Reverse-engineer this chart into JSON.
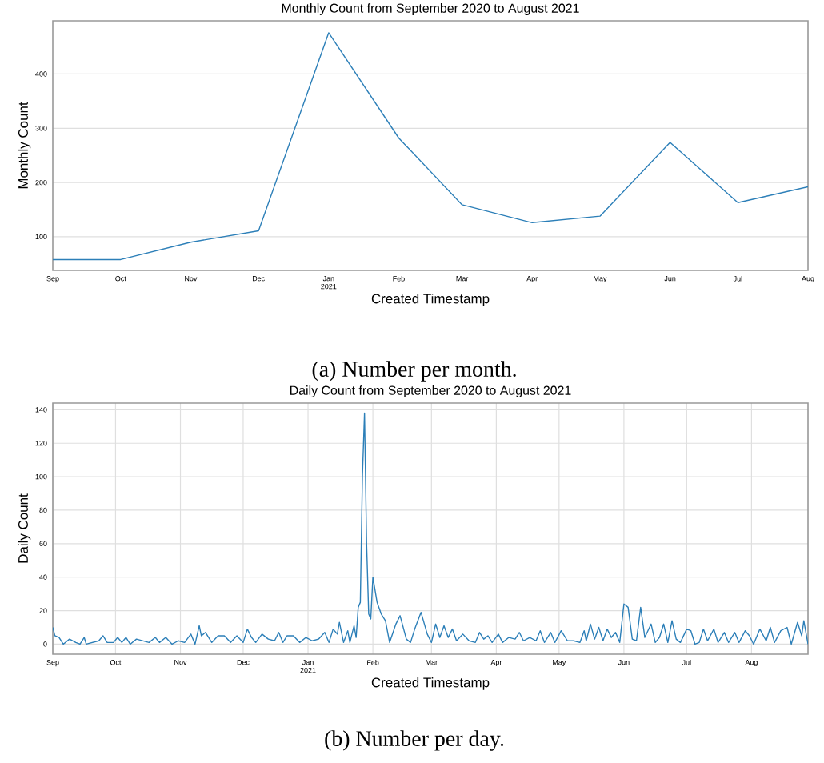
{
  "chart_data": [
    {
      "type": "line",
      "title": "Monthly Count from September 2020 to August 2021",
      "xlabel": "Created Timestamp",
      "ylabel": "Monthly Count",
      "annotations": [
        "(a) Number per month."
      ],
      "color": "#2c7fb8",
      "grid": "y",
      "x": [
        "2020-09-01",
        "2020-10-01",
        "2020-11-01",
        "2020-12-01",
        "2021-01-01",
        "2021-02-01",
        "2021-03-01",
        "2021-04-01",
        "2021-05-01",
        "2021-06-01",
        "2021-07-01",
        "2021-08-01"
      ],
      "values": [
        58,
        58,
        90,
        111,
        476,
        282,
        159,
        126,
        138,
        274,
        163,
        192
      ],
      "xlim": [
        "2020-09-01",
        "2021-08-01"
      ],
      "ylim": [
        38,
        498
      ],
      "yticks": [
        100,
        200,
        300,
        400
      ],
      "xticks": [
        {
          "value": "2020-09-01",
          "label": "Sep"
        },
        {
          "value": "2020-10-01",
          "label": "Oct"
        },
        {
          "value": "2020-11-01",
          "label": "Nov"
        },
        {
          "value": "2020-12-01",
          "label": "Dec"
        },
        {
          "value": "2021-01-01",
          "label": "Jan 2021"
        },
        {
          "value": "2021-02-01",
          "label": "Feb"
        },
        {
          "value": "2021-03-01",
          "label": "Mar"
        },
        {
          "value": "2021-04-01",
          "label": "Apr"
        },
        {
          "value": "2021-05-01",
          "label": "May"
        },
        {
          "value": "2021-06-01",
          "label": "Jun"
        },
        {
          "value": "2021-07-01",
          "label": "Jul"
        },
        {
          "value": "2021-08-01",
          "label": "Aug"
        }
      ]
    },
    {
      "type": "line",
      "title": "Daily Count from September 2020 to August 2021",
      "xlabel": "Created Timestamp",
      "ylabel": "Daily Count",
      "annotations": [
        "(b) Number per day."
      ],
      "color": "#2c7fb8",
      "grid": true,
      "x": [
        "2020-09-01",
        "2020-09-02",
        "2020-09-04",
        "2020-09-06",
        "2020-09-09",
        "2020-09-12",
        "2020-09-14",
        "2020-09-16",
        "2020-09-17",
        "2020-09-20",
        "2020-09-23",
        "2020-09-25",
        "2020-09-27",
        "2020-09-30",
        "2020-10-02",
        "2020-10-04",
        "2020-10-06",
        "2020-10-08",
        "2020-10-11",
        "2020-10-14",
        "2020-10-17",
        "2020-10-20",
        "2020-10-22",
        "2020-10-25",
        "2020-10-28",
        "2020-10-31",
        "2020-11-03",
        "2020-11-06",
        "2020-11-08",
        "2020-11-10",
        "2020-11-11",
        "2020-11-13",
        "2020-11-16",
        "2020-11-19",
        "2020-11-22",
        "2020-11-25",
        "2020-11-28",
        "2020-12-01",
        "2020-12-03",
        "2020-12-05",
        "2020-12-07",
        "2020-12-10",
        "2020-12-13",
        "2020-12-16",
        "2020-12-18",
        "2020-12-20",
        "2020-12-22",
        "2020-12-25",
        "2020-12-28",
        "2020-12-31",
        "2021-01-03",
        "2021-01-06",
        "2021-01-09",
        "2021-01-11",
        "2021-01-13",
        "2021-01-15",
        "2021-01-16",
        "2021-01-18",
        "2021-01-20",
        "2021-01-21",
        "2021-01-23",
        "2021-01-24",
        "2021-01-25",
        "2021-01-26",
        "2021-01-27",
        "2021-01-28",
        "2021-01-29",
        "2021-01-30",
        "2021-01-31",
        "2021-02-01",
        "2021-02-03",
        "2021-02-05",
        "2021-02-07",
        "2021-02-09",
        "2021-02-12",
        "2021-02-14",
        "2021-02-17",
        "2021-02-19",
        "2021-02-21",
        "2021-02-24",
        "2021-02-27",
        "2021-03-01",
        "2021-03-03",
        "2021-03-05",
        "2021-03-07",
        "2021-03-09",
        "2021-03-11",
        "2021-03-13",
        "2021-03-16",
        "2021-03-19",
        "2021-03-22",
        "2021-03-24",
        "2021-03-26",
        "2021-03-28",
        "2021-03-30",
        "2021-04-02",
        "2021-04-04",
        "2021-04-07",
        "2021-04-10",
        "2021-04-12",
        "2021-04-14",
        "2021-04-17",
        "2021-04-20",
        "2021-04-22",
        "2021-04-24",
        "2021-04-27",
        "2021-04-29",
        "2021-05-02",
        "2021-05-05",
        "2021-05-08",
        "2021-05-11",
        "2021-05-13",
        "2021-05-14",
        "2021-05-16",
        "2021-05-18",
        "2021-05-20",
        "2021-05-22",
        "2021-05-24",
        "2021-05-26",
        "2021-05-28",
        "2021-05-30",
        "2021-06-01",
        "2021-06-03",
        "2021-06-05",
        "2021-06-07",
        "2021-06-09",
        "2021-06-11",
        "2021-06-14",
        "2021-06-16",
        "2021-06-18",
        "2021-06-20",
        "2021-06-22",
        "2021-06-24",
        "2021-06-26",
        "2021-06-28",
        "2021-07-01",
        "2021-07-03",
        "2021-07-05",
        "2021-07-07",
        "2021-07-09",
        "2021-07-11",
        "2021-07-14",
        "2021-07-16",
        "2021-07-19",
        "2021-07-21",
        "2021-07-24",
        "2021-07-26",
        "2021-07-29",
        "2021-07-31",
        "2021-08-02",
        "2021-08-05",
        "2021-08-08",
        "2021-08-10",
        "2021-08-12",
        "2021-08-15",
        "2021-08-18",
        "2021-08-20",
        "2021-08-23",
        "2021-08-25",
        "2021-08-26",
        "2021-08-28"
      ],
      "values": [
        10,
        5,
        4,
        0,
        3,
        1,
        0,
        4,
        0,
        1,
        2,
        5,
        1,
        1,
        4,
        1,
        4,
        0,
        3,
        2,
        1,
        4,
        1,
        4,
        0,
        2,
        1,
        6,
        0,
        11,
        5,
        7,
        1,
        5,
        5,
        1,
        5,
        1,
        9,
        4,
        1,
        6,
        3,
        2,
        7,
        1,
        5,
        5,
        1,
        4,
        2,
        3,
        7,
        1,
        9,
        6,
        13,
        1,
        8,
        1,
        11,
        4,
        22,
        25,
        100,
        138,
        60,
        18,
        15,
        40,
        25,
        18,
        14,
        1,
        12,
        17,
        3,
        1,
        9,
        19,
        6,
        1,
        12,
        4,
        11,
        4,
        9,
        2,
        6,
        2,
        1,
        7,
        3,
        5,
        1,
        6,
        1,
        4,
        3,
        7,
        2,
        4,
        2,
        8,
        1,
        7,
        1,
        8,
        2,
        2,
        1,
        8,
        2,
        12,
        3,
        10,
        2,
        9,
        4,
        7,
        1,
        24,
        22,
        3,
        2,
        22,
        4,
        12,
        1,
        4,
        12,
        1,
        14,
        3,
        1,
        9,
        8,
        0,
        1,
        9,
        2,
        9,
        1,
        7,
        1,
        7,
        1,
        8,
        5,
        0,
        9,
        2,
        10,
        1,
        8,
        10,
        0,
        13,
        5,
        14,
        0
      ],
      "xlim": [
        "2020-09-01",
        "2021-08-28"
      ],
      "ylim": [
        -6,
        144
      ],
      "yticks": [
        0,
        20,
        40,
        60,
        80,
        100,
        120,
        140
      ],
      "xticks": [
        {
          "value": "2020-09-01",
          "label": "Sep"
        },
        {
          "value": "2020-10-01",
          "label": "Oct"
        },
        {
          "value": "2020-11-01",
          "label": "Nov"
        },
        {
          "value": "2020-12-01",
          "label": "Dec"
        },
        {
          "value": "2021-01-01",
          "label": "Jan 2021"
        },
        {
          "value": "2021-02-01",
          "label": "Feb"
        },
        {
          "value": "2021-03-01",
          "label": "Mar"
        },
        {
          "value": "2021-04-01",
          "label": "Apr"
        },
        {
          "value": "2021-05-01",
          "label": "May"
        },
        {
          "value": "2021-06-01",
          "label": "Jun"
        },
        {
          "value": "2021-07-01",
          "label": "Jul"
        },
        {
          "value": "2021-08-01",
          "label": "Aug"
        }
      ]
    }
  ]
}
